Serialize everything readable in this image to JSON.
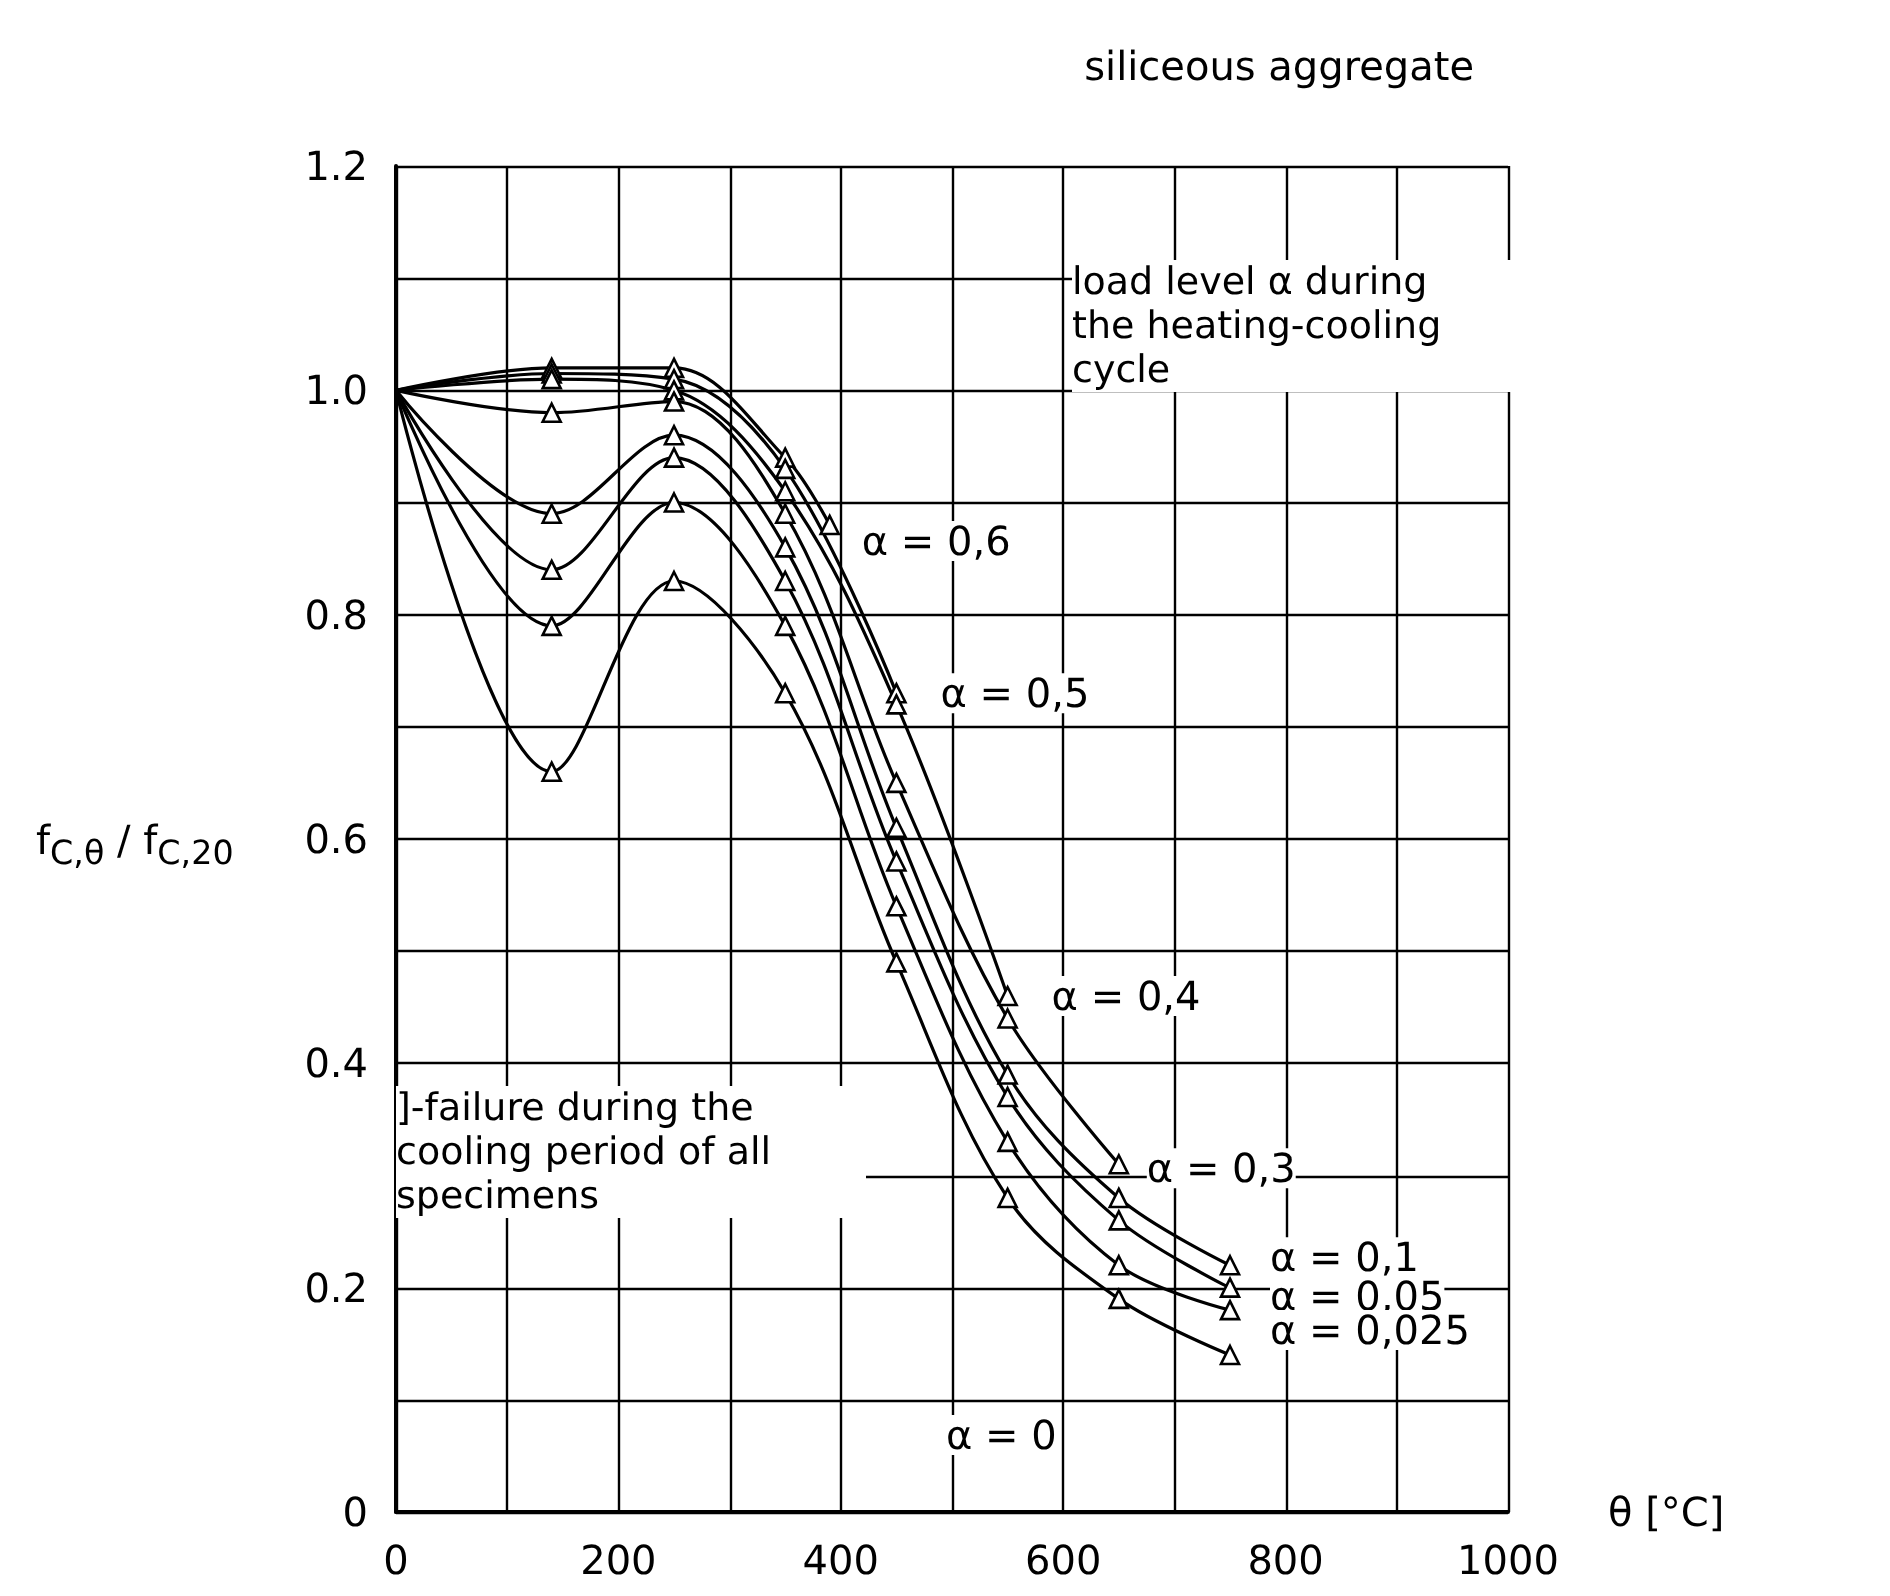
{
  "chart_data": {
    "type": "line",
    "title": "siliceous aggregate",
    "xlabel": "θ [°C]",
    "ylabel": "f$_{C,θ}$ / f$_{C,20}$",
    "xlim": [
      0,
      1000
    ],
    "xticks": [
      0,
      {
        "value": 100,
        "label": null
      },
      200,
      {
        "value": 300,
        "label": null
      },
      400,
      {
        "value": 500,
        "label": null
      },
      600,
      {
        "value": 700,
        "label": null
      },
      800,
      {
        "value": 900,
        "label": null
      },
      1000
    ],
    "ylim": [
      0,
      1.2
    ],
    "yticks": [
      0,
      {
        "value": 0.1,
        "label": null
      },
      0.2,
      {
        "value": 0.3,
        "label": null
      },
      0.4,
      {
        "value": 0.5,
        "label": null
      },
      0.6,
      {
        "value": 0.7,
        "label": null
      },
      0.8,
      {
        "value": 0.9,
        "label": null
      },
      {
        "value": 1,
        "label": "1.0"
      },
      {
        "value": 1.1,
        "label": null
      },
      1.2
    ],
    "grid": true,
    "legend": false,
    "marker": "triangle",
    "line_style": "solid",
    "annotations": [
      "load level α during the heating-cooling cycle",
      "]-failure during the cooling period of all specimens"
    ],
    "series": [
      {
        "name": "α = 0,6",
        "color": "#000000",
        "x": [
          0,
          140,
          250,
          350,
          390
        ],
        "values": [
          1.0,
          1.02,
          1.02,
          0.94,
          0.88
        ]
      },
      {
        "name": "α = 0,5",
        "color": "#000000",
        "x": [
          0,
          140,
          250,
          350,
          450
        ],
        "values": [
          1.0,
          1.015,
          1.01,
          0.93,
          0.73
        ]
      },
      {
        "name": "α = 0,4",
        "color": "#000000",
        "x": [
          0,
          140,
          250,
          350,
          450,
          550
        ],
        "values": [
          1.0,
          1.01,
          1.0,
          0.91,
          0.72,
          0.46
        ]
      },
      {
        "name": "α = 0,3",
        "color": "#000000",
        "x": [
          0,
          140,
          250,
          350,
          450,
          550,
          650
        ],
        "values": [
          1.0,
          0.98,
          0.99,
          0.89,
          0.65,
          0.44,
          0.31
        ]
      },
      {
        "name": "α = 0,1",
        "color": "#000000",
        "x": [
          0,
          140,
          250,
          350,
          450,
          550,
          650,
          750
        ],
        "values": [
          1.0,
          0.89,
          0.96,
          0.86,
          0.61,
          0.39,
          0.28,
          0.22
        ]
      },
      {
        "name": "α = 0,05",
        "color": "#000000",
        "x": [
          0,
          140,
          250,
          350,
          450,
          550,
          650,
          750
        ],
        "values": [
          1.0,
          0.84,
          0.94,
          0.83,
          0.58,
          0.37,
          0.26,
          0.2
        ]
      },
      {
        "name": "α = 0,025",
        "color": "#000000",
        "x": [
          0,
          140,
          250,
          350,
          450,
          550,
          650,
          750
        ],
        "values": [
          1.0,
          0.79,
          0.9,
          0.79,
          0.54,
          0.33,
          0.22,
          0.18
        ]
      },
      {
        "name": "α = 0",
        "color": "#000000",
        "x": [
          0,
          140,
          250,
          350,
          450,
          550,
          650,
          750
        ],
        "values": [
          1.0,
          0.66,
          0.83,
          0.73,
          0.49,
          0.28,
          0.19,
          0.14
        ]
      }
    ]
  }
}
